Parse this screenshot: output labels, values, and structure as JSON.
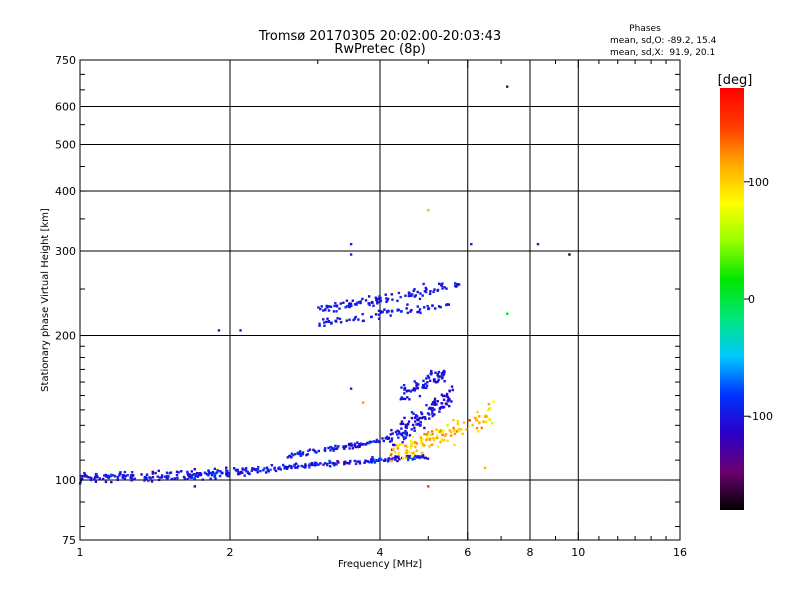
{
  "chart_data": {
    "type": "scatter",
    "title": "Tromsø 20170305 20:02:00-20:03:43",
    "subtitle": "RwPretec (8p)",
    "phase_box": {
      "heading": "Phases",
      "line_o": "mean, sd,O: -89.2, 15.4",
      "line_x": "mean, sd,X:  91.9, 20.1"
    },
    "xlabel": "Frequency [MHz]",
    "ylabel": "Stationary phase Virtual Height [km]",
    "x_scale": "log",
    "y_scale": "log",
    "xlim": [
      1,
      16
    ],
    "ylim": [
      75,
      750
    ],
    "x_ticks": [
      1,
      2,
      4,
      6,
      8,
      10,
      16
    ],
    "x_tick_labels": [
      "1",
      "2",
      "4",
      "6",
      "8",
      "10",
      "16"
    ],
    "y_ticks": [
      75,
      100,
      200,
      300,
      400,
      500,
      600,
      750
    ],
    "y_tick_labels": [
      "75",
      "100",
      "200",
      "300",
      "400",
      "500",
      "600",
      "750"
    ],
    "grid": true,
    "colorbar": {
      "label": "[deg]",
      "min": -180,
      "max": 180,
      "ticks": [
        100,
        0,
        -100
      ],
      "tick_labels": [
        "100",
        "0",
        "-100"
      ],
      "colors": [
        "#000000",
        "#6a006f",
        "#2a00c8",
        "#0032ff",
        "#00c8ff",
        "#00e67a",
        "#00e600",
        "#96ff00",
        "#ffff00",
        "#ffaa00",
        "#ff3c00",
        "#ff0000"
      ]
    },
    "traces": [
      {
        "name": "",
        "x0": 1.0,
        "x1": 1.9,
        "h0": 101,
        "h1": 103,
        "n": 150,
        "spread": 0.012,
        "phase": -100,
        "phase_sd": 12
      },
      {
        "name": "",
        "x0": 1.9,
        "x1": 2.5,
        "h0": 103,
        "h1": 106,
        "n": 60,
        "spread": 0.01,
        "phase": -100,
        "phase_sd": 12
      },
      {
        "name": "",
        "x0": 2.5,
        "x1": 5.0,
        "h0": 106,
        "h1": 112,
        "n": 140,
        "spread": 0.006,
        "phase": -100,
        "phase_sd": 18
      },
      {
        "name": "",
        "x0": 2.6,
        "x1": 4.2,
        "h0": 112,
        "h1": 122,
        "n": 90,
        "spread": 0.006,
        "phase": -100,
        "phase_sd": 10
      },
      {
        "name": "",
        "x0": 4.2,
        "x1": 5.6,
        "h0": 122,
        "h1": 150,
        "n": 120,
        "spread": 0.03,
        "phase": -105,
        "phase_sd": 10
      },
      {
        "name": "",
        "x0": 4.4,
        "x1": 5.4,
        "h0": 150,
        "h1": 168,
        "n": 70,
        "spread": 0.02,
        "phase": -100,
        "phase_sd": 10
      },
      {
        "name": "",
        "x0": 4.2,
        "x1": 6.8,
        "h0": 113,
        "h1": 138,
        "n": 130,
        "spread": 0.025,
        "phase": 105,
        "phase_sd": 15
      },
      {
        "name": "",
        "x0": 3.0,
        "x1": 5.8,
        "h0": 225,
        "h1": 255,
        "n": 110,
        "spread": 0.012,
        "phase": -100,
        "phase_sd": 10
      },
      {
        "name": "",
        "x0": 3.0,
        "x1": 5.5,
        "h0": 212,
        "h1": 232,
        "n": 70,
        "spread": 0.01,
        "phase": -100,
        "phase_sd": 10
      }
    ],
    "isolated_points": [
      {
        "f": 7.2,
        "h": 660,
        "phase": -150
      },
      {
        "f": 5.0,
        "h": 365,
        "phase": 110
      },
      {
        "f": 6.1,
        "h": 310,
        "phase": -95
      },
      {
        "f": 8.3,
        "h": 310,
        "phase": -100
      },
      {
        "f": 9.6,
        "h": 295,
        "phase": -170
      },
      {
        "f": 3.5,
        "h": 310,
        "phase": -95
      },
      {
        "f": 3.5,
        "h": 295,
        "phase": -95
      },
      {
        "f": 1.9,
        "h": 205,
        "phase": -100
      },
      {
        "f": 2.1,
        "h": 205,
        "phase": -100
      },
      {
        "f": 7.2,
        "h": 222,
        "phase": 10
      },
      {
        "f": 3.5,
        "h": 155,
        "phase": -90
      },
      {
        "f": 3.7,
        "h": 145,
        "phase": 120
      },
      {
        "f": 5.0,
        "h": 97,
        "phase": 150
      },
      {
        "f": 6.5,
        "h": 106,
        "phase": 110
      },
      {
        "f": 1.7,
        "h": 97,
        "phase": -120
      }
    ]
  }
}
